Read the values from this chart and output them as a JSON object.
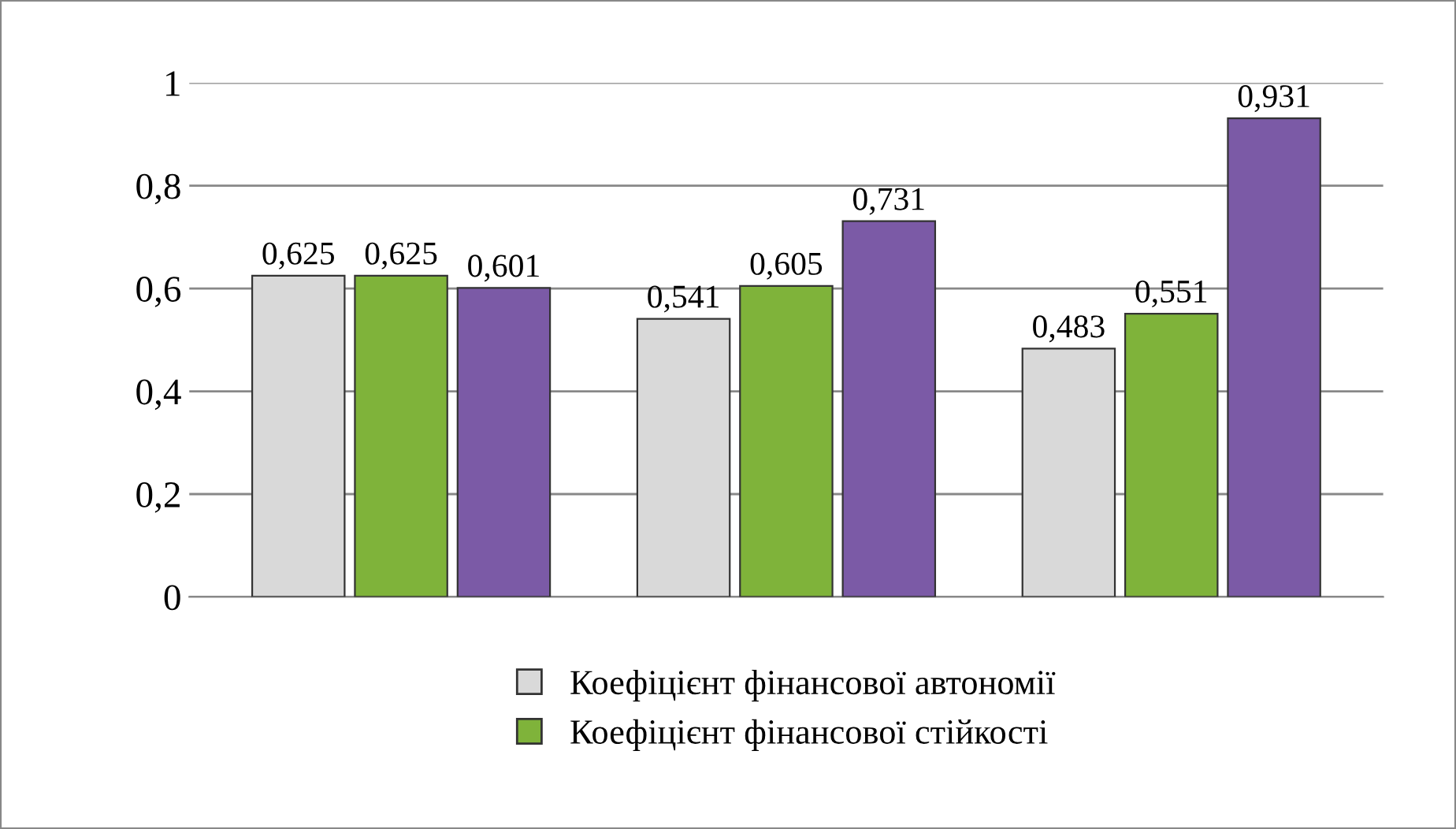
{
  "chart_data": {
    "type": "bar",
    "categories": [
      null,
      null,
      null
    ],
    "series": [
      {
        "name": "Коефіцієнт фінансової автономії",
        "color": "#d9d9d9",
        "values": [
          0.625,
          0.541,
          0.483
        ],
        "value_labels": [
          "0,625",
          "0,541",
          "0,483"
        ]
      },
      {
        "name": "Коефіцієнт фінансової стійкості",
        "color": "#7fb33a",
        "values": [
          0.625,
          0.605,
          0.551
        ],
        "value_labels": [
          "0,625",
          "0,605",
          "0,551"
        ]
      },
      {
        "color": "#7b5aa6",
        "values": [
          0.601,
          0.731,
          0.931
        ],
        "value_labels": [
          "0,601",
          "0,731",
          "0,931"
        ]
      }
    ],
    "ylim": [
      0,
      1
    ],
    "yticks": [
      {
        "value": 0,
        "label": "0"
      },
      {
        "value": 0.2,
        "label": "0,2"
      },
      {
        "value": 0.4,
        "label": "0,4"
      },
      {
        "value": 0.6,
        "label": "0,6"
      },
      {
        "value": 0.8,
        "label": "0,8"
      },
      {
        "value": 1,
        "label": "1"
      }
    ],
    "grid": "y",
    "legend": "bottom"
  }
}
